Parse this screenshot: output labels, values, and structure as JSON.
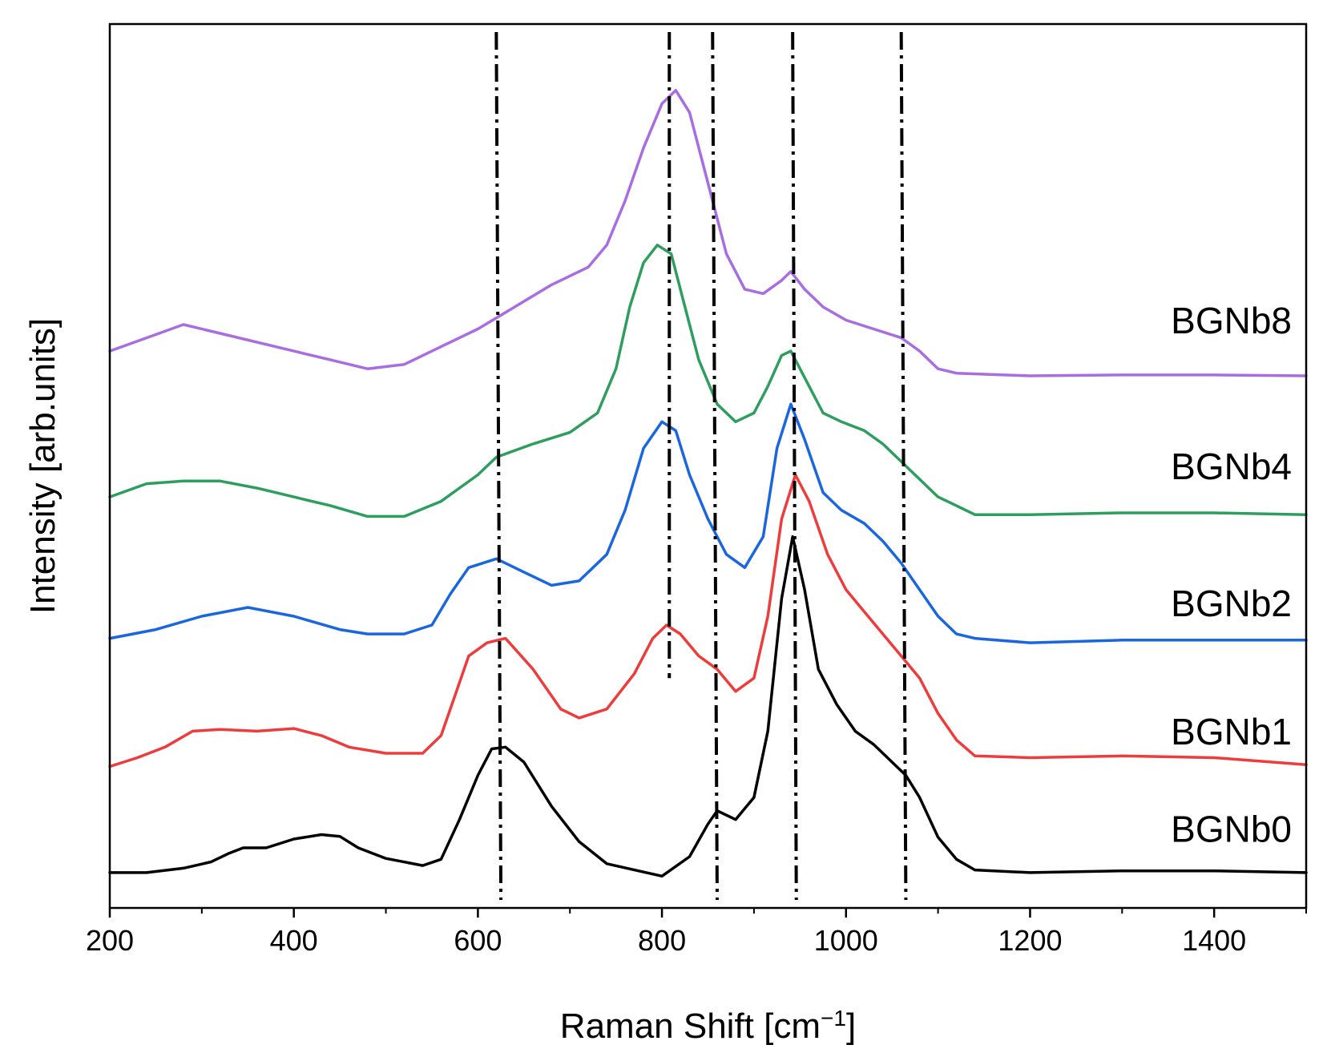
{
  "chart_data": {
    "type": "line",
    "title": "",
    "xlabel": "Raman Shift [cm",
    "xlabel_sup": "−1",
    "xlabel_end": "]",
    "ylabel": "Intensity [arb.units]",
    "xlim": [
      200,
      1500
    ],
    "ylim": [
      0,
      100
    ],
    "x_ticks": [
      200,
      400,
      600,
      800,
      1000,
      1200,
      1400
    ],
    "x_minor_ticks": [
      300,
      500,
      700,
      900,
      1100,
      1300,
      1500
    ],
    "grid": false,
    "y_tick_labels": false,
    "reference_lines": [
      {
        "x": [
          620,
          625
        ]
      },
      {
        "x": [
          808,
          808
        ],
        "partial_to_y": 26
      },
      {
        "x": [
          855,
          860
        ]
      },
      {
        "x": [
          942,
          946
        ]
      },
      {
        "x": [
          1060,
          1065
        ]
      }
    ],
    "series": [
      {
        "name": "BGNb0",
        "color": "#000000",
        "label_y": 7.5,
        "points": [
          [
            200,
            4
          ],
          [
            240,
            4
          ],
          [
            280,
            4.5
          ],
          [
            310,
            5.2
          ],
          [
            330,
            6.2
          ],
          [
            345,
            6.8
          ],
          [
            370,
            6.8
          ],
          [
            400,
            7.8
          ],
          [
            430,
            8.3
          ],
          [
            450,
            8.1
          ],
          [
            470,
            6.8
          ],
          [
            500,
            5.6
          ],
          [
            540,
            4.8
          ],
          [
            560,
            5.5
          ],
          [
            580,
            10
          ],
          [
            600,
            15
          ],
          [
            615,
            18
          ],
          [
            630,
            18.2
          ],
          [
            650,
            16.5
          ],
          [
            680,
            11.5
          ],
          [
            710,
            7.5
          ],
          [
            740,
            5
          ],
          [
            770,
            4.3
          ],
          [
            800,
            3.6
          ],
          [
            830,
            5.8
          ],
          [
            850,
            9.5
          ],
          [
            860,
            11
          ],
          [
            880,
            10
          ],
          [
            900,
            12.5
          ],
          [
            915,
            20
          ],
          [
            930,
            35
          ],
          [
            942,
            42
          ],
          [
            955,
            36
          ],
          [
            970,
            27
          ],
          [
            990,
            23
          ],
          [
            1010,
            20
          ],
          [
            1030,
            18.5
          ],
          [
            1050,
            16.5
          ],
          [
            1065,
            15
          ],
          [
            1080,
            12.5
          ],
          [
            1100,
            8
          ],
          [
            1120,
            5.5
          ],
          [
            1140,
            4.3
          ],
          [
            1200,
            4
          ],
          [
            1300,
            4.2
          ],
          [
            1400,
            4.2
          ],
          [
            1500,
            4
          ]
        ]
      },
      {
        "name": "BGNb1",
        "color": "#ee3b3b",
        "label_y": 18.5,
        "points": [
          [
            200,
            16
          ],
          [
            230,
            17
          ],
          [
            260,
            18.2
          ],
          [
            290,
            20
          ],
          [
            320,
            20.2
          ],
          [
            360,
            20
          ],
          [
            400,
            20.3
          ],
          [
            430,
            19.5
          ],
          [
            460,
            18.2
          ],
          [
            500,
            17.5
          ],
          [
            540,
            17.5
          ],
          [
            560,
            19.5
          ],
          [
            575,
            24
          ],
          [
            590,
            28.5
          ],
          [
            610,
            30
          ],
          [
            630,
            30.5
          ],
          [
            660,
            27
          ],
          [
            690,
            22.5
          ],
          [
            710,
            21.5
          ],
          [
            740,
            22.5
          ],
          [
            770,
            26.5
          ],
          [
            790,
            30.5
          ],
          [
            805,
            32
          ],
          [
            820,
            31
          ],
          [
            840,
            28.5
          ],
          [
            860,
            27
          ],
          [
            880,
            24.5
          ],
          [
            900,
            26
          ],
          [
            915,
            33
          ],
          [
            930,
            44
          ],
          [
            945,
            49
          ],
          [
            960,
            46
          ],
          [
            980,
            40
          ],
          [
            1000,
            36
          ],
          [
            1020,
            33.5
          ],
          [
            1040,
            31
          ],
          [
            1060,
            28.5
          ],
          [
            1080,
            26
          ],
          [
            1100,
            22
          ],
          [
            1120,
            19
          ],
          [
            1140,
            17.2
          ],
          [
            1200,
            17
          ],
          [
            1300,
            17.2
          ],
          [
            1400,
            17
          ],
          [
            1500,
            16.2
          ]
        ]
      },
      {
        "name": "BGNb2",
        "color": "#1a66e0",
        "label_y": 33,
        "points": [
          [
            200,
            30.5
          ],
          [
            250,
            31.5
          ],
          [
            300,
            33
          ],
          [
            350,
            34
          ],
          [
            400,
            33
          ],
          [
            450,
            31.5
          ],
          [
            480,
            31
          ],
          [
            520,
            31
          ],
          [
            550,
            32
          ],
          [
            570,
            35.5
          ],
          [
            590,
            38.5
          ],
          [
            620,
            39.5
          ],
          [
            650,
            38
          ],
          [
            680,
            36.5
          ],
          [
            710,
            37
          ],
          [
            740,
            40
          ],
          [
            760,
            45
          ],
          [
            780,
            52
          ],
          [
            800,
            55
          ],
          [
            815,
            54
          ],
          [
            830,
            49
          ],
          [
            850,
            44
          ],
          [
            870,
            40
          ],
          [
            890,
            38.5
          ],
          [
            910,
            42
          ],
          [
            925,
            52
          ],
          [
            940,
            57
          ],
          [
            955,
            53
          ],
          [
            975,
            47
          ],
          [
            995,
            45
          ],
          [
            1020,
            43.5
          ],
          [
            1040,
            41.5
          ],
          [
            1060,
            39
          ],
          [
            1080,
            36
          ],
          [
            1100,
            33
          ],
          [
            1120,
            31
          ],
          [
            1140,
            30.5
          ],
          [
            1200,
            30
          ],
          [
            1300,
            30.3
          ],
          [
            1400,
            30.3
          ],
          [
            1500,
            30.3
          ]
        ]
      },
      {
        "name": "BGNb4",
        "color": "#2e9e5e",
        "label_y": 48.5,
        "points": [
          [
            200,
            46.5
          ],
          [
            240,
            48
          ],
          [
            280,
            48.3
          ],
          [
            320,
            48.3
          ],
          [
            360,
            47.5
          ],
          [
            400,
            46.5
          ],
          [
            440,
            45.5
          ],
          [
            480,
            44.3
          ],
          [
            520,
            44.3
          ],
          [
            560,
            46
          ],
          [
            600,
            49
          ],
          [
            620,
            51
          ],
          [
            660,
            52.5
          ],
          [
            700,
            53.8
          ],
          [
            730,
            56
          ],
          [
            750,
            61
          ],
          [
            765,
            68
          ],
          [
            780,
            73
          ],
          [
            795,
            75
          ],
          [
            810,
            74
          ],
          [
            825,
            68
          ],
          [
            840,
            62
          ],
          [
            860,
            57
          ],
          [
            880,
            55
          ],
          [
            900,
            56
          ],
          [
            915,
            59
          ],
          [
            930,
            62.5
          ],
          [
            940,
            63
          ],
          [
            955,
            60
          ],
          [
            975,
            56
          ],
          [
            995,
            55
          ],
          [
            1020,
            54
          ],
          [
            1040,
            52.5
          ],
          [
            1060,
            50.5
          ],
          [
            1080,
            48.5
          ],
          [
            1100,
            46.5
          ],
          [
            1120,
            45.5
          ],
          [
            1140,
            44.5
          ],
          [
            1200,
            44.5
          ],
          [
            1300,
            44.7
          ],
          [
            1400,
            44.7
          ],
          [
            1500,
            44.5
          ]
        ]
      },
      {
        "name": "BGNb8",
        "color": "#a86de0",
        "label_y": 65,
        "points": [
          [
            200,
            63
          ],
          [
            240,
            64.5
          ],
          [
            280,
            66
          ],
          [
            320,
            65
          ],
          [
            360,
            64
          ],
          [
            400,
            63
          ],
          [
            440,
            62
          ],
          [
            480,
            61
          ],
          [
            520,
            61.5
          ],
          [
            560,
            63.5
          ],
          [
            600,
            65.5
          ],
          [
            640,
            68
          ],
          [
            680,
            70.5
          ],
          [
            720,
            72.5
          ],
          [
            740,
            75
          ],
          [
            760,
            80
          ],
          [
            780,
            86
          ],
          [
            800,
            91
          ],
          [
            815,
            92.5
          ],
          [
            830,
            90
          ],
          [
            850,
            82
          ],
          [
            870,
            74
          ],
          [
            890,
            70
          ],
          [
            910,
            69.5
          ],
          [
            930,
            71
          ],
          [
            940,
            72
          ],
          [
            955,
            70
          ],
          [
            975,
            68
          ],
          [
            1000,
            66.5
          ],
          [
            1030,
            65.5
          ],
          [
            1060,
            64.5
          ],
          [
            1080,
            63
          ],
          [
            1100,
            61
          ],
          [
            1120,
            60.5
          ],
          [
            1200,
            60.2
          ],
          [
            1300,
            60.3
          ],
          [
            1400,
            60.3
          ],
          [
            1500,
            60.2
          ]
        ]
      }
    ]
  }
}
